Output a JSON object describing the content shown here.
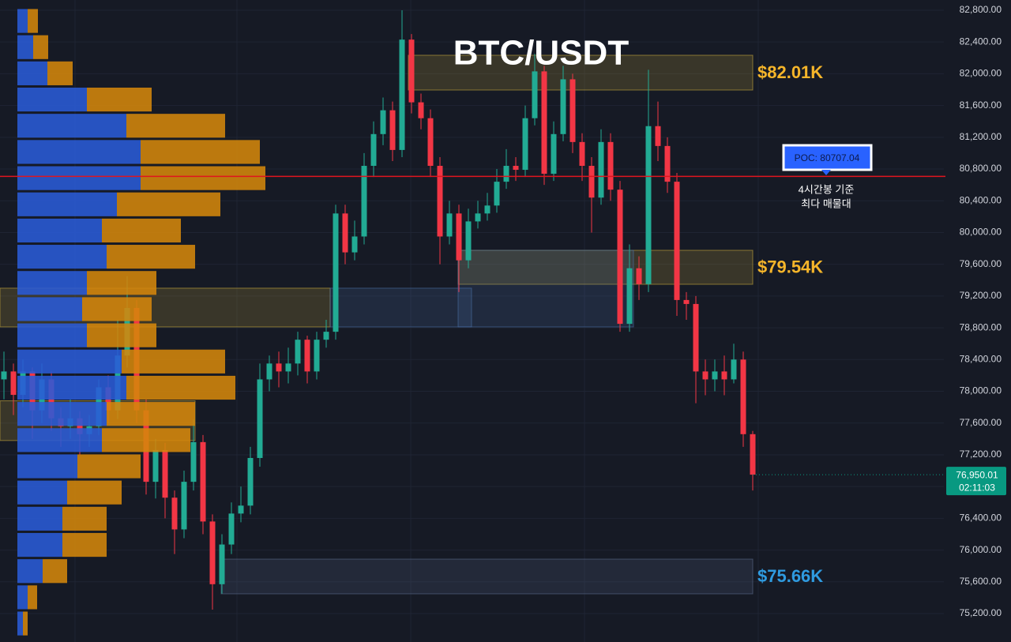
{
  "chart_data": {
    "type": "candlestick",
    "title": "BTC/USDT",
    "up_color": "#22ab94",
    "down_color": "#f23645",
    "grid": true,
    "ylim": [
      74842,
      82929
    ],
    "yticks": [
      {
        "value": 75200,
        "label": "75,200.00"
      },
      {
        "value": 75600,
        "label": "75,600.00"
      },
      {
        "value": 76000,
        "label": "76,000.00"
      },
      {
        "value": 76400,
        "label": "76,400.00"
      },
      {
        "value": 76800,
        "label": "76,800.00"
      },
      {
        "value": 77200,
        "label": "77,200.00"
      },
      {
        "value": 77600,
        "label": "77,600.00"
      },
      {
        "value": 78000,
        "label": "78,000.00"
      },
      {
        "value": 78400,
        "label": "78,400.00"
      },
      {
        "value": 78800,
        "label": "78,800.00"
      },
      {
        "value": 79200,
        "label": "79,200.00"
      },
      {
        "value": 79600,
        "label": "79,600.00"
      },
      {
        "value": 80000,
        "label": "80,000.00"
      },
      {
        "value": 80400,
        "label": "80,400.00"
      },
      {
        "value": 80800,
        "label": "80,800.00"
      },
      {
        "value": 81200,
        "label": "81,200.00"
      },
      {
        "value": 81600,
        "label": "81,600.00"
      },
      {
        "value": 82000,
        "label": "82,000.00"
      },
      {
        "value": 82400,
        "label": "82,400.00"
      },
      {
        "value": 82800,
        "label": "82,800.00"
      }
    ],
    "open": [
      78150,
      78250,
      77955,
      78250,
      77760,
      78150,
      77660,
      77560,
      77660,
      77460,
      77560,
      78050,
      77760,
      78450,
      79050,
      77760,
      76860,
      77260,
      76660,
      76260,
      76860,
      77360,
      76360,
      75570,
      76070,
      76460,
      76560,
      77160,
      78150,
      78350,
      78250,
      78350,
      78650,
      78250,
      78650,
      78750,
      80240,
      79750,
      79950,
      80840,
      81240,
      81540,
      81040,
      82430,
      81640,
      81440,
      80840,
      79950,
      80240,
      79650,
      80140,
      80240,
      80340,
      80640,
      80840,
      80790,
      81440,
      82030,
      80740,
      81240,
      81930,
      81140,
      80840,
      80440,
      81140,
      80540,
      78850,
      79550,
      79350,
      81340,
      81090,
      80640,
      79150,
      79100,
      78250,
      78150,
      78250,
      78150,
      78400,
      77460
    ],
    "high": [
      78500,
      78350,
      78400,
      78300,
      78350,
      78250,
      77800,
      77900,
      77750,
      77700,
      78150,
      78200,
      78900,
      79450,
      79150,
      77900,
      77400,
      77350,
      76750,
      77000,
      77650,
      77450,
      76450,
      76200,
      76600,
      76800,
      77300,
      78350,
      78450,
      78500,
      78550,
      78750,
      78700,
      78750,
      78900,
      80350,
      80350,
      80150,
      81000,
      81400,
      81700,
      81650,
      82800,
      82500,
      81750,
      81550,
      80950,
      80400,
      80350,
      80300,
      80400,
      80500,
      80800,
      81050,
      80950,
      81600,
      82250,
      82100,
      81400,
      82100,
      82000,
      81250,
      80950,
      81300,
      81250,
      80650,
      79850,
      79700,
      82050,
      81650,
      81200,
      80750,
      79250,
      79200,
      78400,
      78400,
      78450,
      78600,
      78500,
      77500
    ],
    "low": [
      77900,
      77700,
      77800,
      77400,
      77600,
      77500,
      77300,
      77400,
      77200,
      77300,
      77450,
      77600,
      77650,
      78300,
      77600,
      76700,
      76650,
      76400,
      75950,
      76150,
      76750,
      76200,
      75250,
      75450,
      75950,
      76350,
      76450,
      77050,
      78000,
      78050,
      78100,
      78200,
      78100,
      78150,
      78550,
      78650,
      79600,
      79650,
      79850,
      80700,
      81100,
      80900,
      80950,
      81500,
      81300,
      80700,
      79600,
      79850,
      79250,
      79550,
      80050,
      80150,
      80250,
      80550,
      80650,
      80700,
      81350,
      80600,
      80650,
      81150,
      81000,
      80650,
      80000,
      80350,
      80400,
      78750,
      78750,
      79150,
      79250,
      80900,
      80500,
      78950,
      78900,
      77850,
      77950,
      78000,
      77950,
      78100,
      77300,
      76750
    ],
    "close": [
      78250,
      77955,
      78250,
      77760,
      78150,
      77660,
      77560,
      77660,
      77460,
      77560,
      78050,
      77760,
      78450,
      79050,
      77760,
      76860,
      77260,
      76660,
      76260,
      76860,
      77360,
      76360,
      75570,
      76070,
      76460,
      76560,
      77160,
      78150,
      78350,
      78250,
      78350,
      78650,
      78250,
      78650,
      78750,
      80240,
      79750,
      79950,
      80840,
      81240,
      81540,
      81040,
      82430,
      81640,
      81440,
      80840,
      79950,
      80240,
      79650,
      80140,
      80240,
      80340,
      80640,
      80840,
      80790,
      81440,
      82030,
      80740,
      81240,
      81930,
      81140,
      80840,
      80440,
      81140,
      80540,
      78850,
      79550,
      79350,
      81340,
      81090,
      80640,
      79150,
      79100,
      78250,
      78150,
      78250,
      78150,
      78400,
      77460,
      76950.01
    ],
    "volume_profile": {
      "bins": [
        82830,
        82500,
        82170,
        81840,
        81510,
        81180,
        80850,
        80520,
        80190,
        79860,
        79530,
        79200,
        78870,
        78540,
        78210,
        77880,
        77550,
        77220,
        76890,
        76560,
        76230,
        75900,
        75570,
        75240,
        74910
      ],
      "buy": [
        13,
        20,
        38,
        88,
        138,
        156,
        156,
        126,
        107,
        113,
        88,
        82,
        88,
        132,
        138,
        113,
        107,
        76,
        63,
        57,
        57,
        32,
        13,
        7
      ],
      "sell": [
        13,
        19,
        32,
        82,
        125,
        151,
        158,
        131,
        100,
        112,
        88,
        88,
        88,
        131,
        138,
        112,
        112,
        80,
        69,
        56,
        56,
        31,
        12,
        6
      ],
      "buy_color": "#2a5bd7",
      "sell_color": "#d4860b"
    },
    "zones": [
      {
        "low": 81795,
        "high": 82233,
        "color": "#c8aa3c",
        "label": "$82.01K",
        "label_color": "#f5b52a"
      },
      {
        "low": 79348,
        "high": 79776,
        "color": "#c8aa3c",
        "label": "$79.54K",
        "label_color": "#f5b52a"
      },
      {
        "low": 75449,
        "high": 75886,
        "color": "#5a6b8a",
        "label": "$75.66K",
        "label_color": "#2f9be0"
      },
      {
        "low": 78811,
        "high": 79299,
        "color": "#c8aa3c"
      },
      {
        "low": 78811,
        "high": 79299,
        "color": "#4a6fa5"
      },
      {
        "low": 78811,
        "high": 79776,
        "color": "#4a6fa5"
      },
      {
        "low": 77380,
        "high": 77880,
        "color": "#c8aa3c"
      }
    ],
    "poc": {
      "value": 80707.04,
      "label": "POC: 80707.04",
      "color": "#e0141e",
      "annotation": [
        "4시간봉 기준",
        "최다 매물대"
      ]
    },
    "last_price": {
      "value": 76950.01,
      "label": "76,950.01",
      "countdown": "02:11:03",
      "color": "#089981"
    }
  }
}
